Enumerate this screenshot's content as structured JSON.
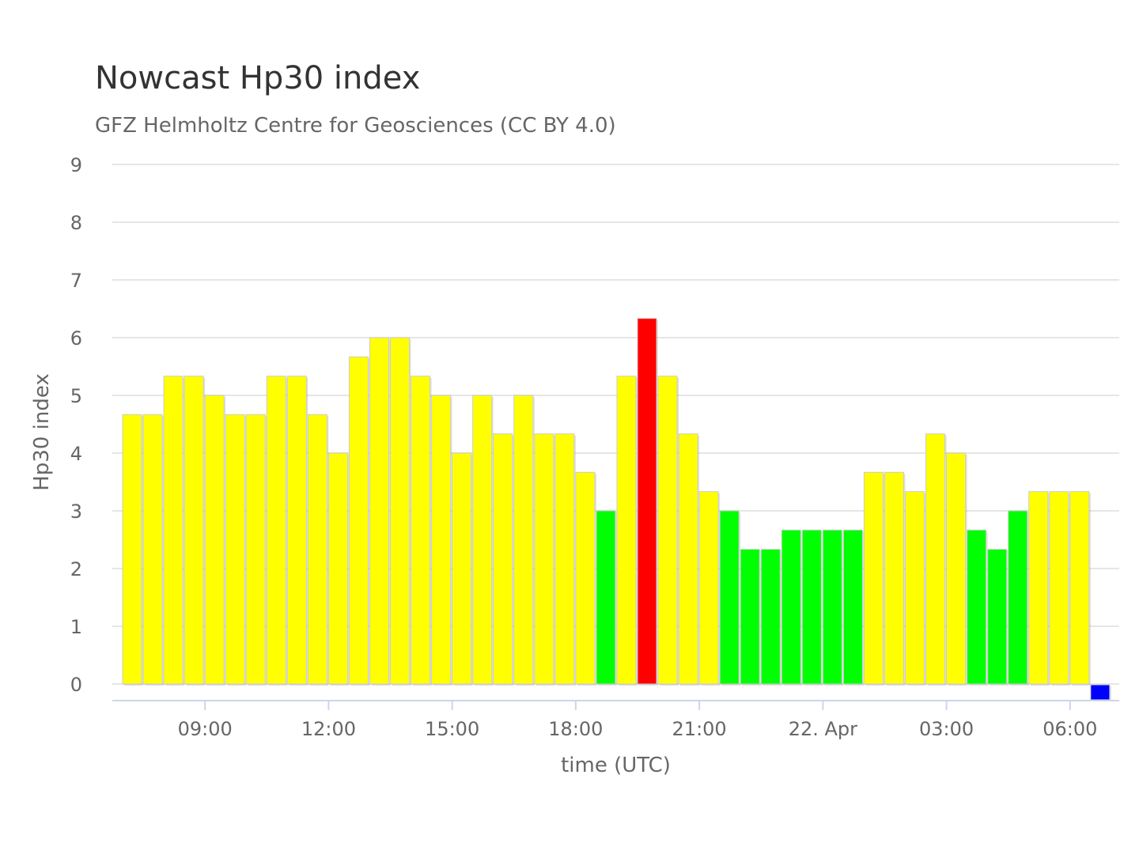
{
  "chart_data": {
    "type": "bar",
    "title": "Nowcast Hp30 index",
    "subtitle": "GFZ Helmholtz Centre for Geosciences (CC BY 4.0)",
    "xlabel": "time (UTC)",
    "ylabel": "Hp30 index",
    "ylim": [
      0,
      9
    ],
    "yticks": [
      "0",
      "1",
      "2",
      "3",
      "4",
      "5",
      "6",
      "7",
      "8",
      "9"
    ],
    "xticks": [
      "09:00",
      "12:00",
      "15:00",
      "18:00",
      "21:00",
      "22. Apr",
      "03:00",
      "06:00"
    ],
    "grid": true,
    "interval_minutes": 30,
    "first_bar": "21. Apr 07:00",
    "colors": {
      "low": "#00ff00",
      "moderate": "#ffff00",
      "high": "#ff0000",
      "missing": "#0000ff"
    },
    "values": [
      4.667,
      4.667,
      5.333,
      5.333,
      5.0,
      4.667,
      4.667,
      5.333,
      5.333,
      4.667,
      4.0,
      5.667,
      6.0,
      6.0,
      5.333,
      5.0,
      4.0,
      5.0,
      4.333,
      5.0,
      4.333,
      4.333,
      3.667,
      3.0,
      5.333,
      6.333,
      5.333,
      4.333,
      3.333,
      3.0,
      2.333,
      2.333,
      2.667,
      2.667,
      2.667,
      2.667,
      3.667,
      3.667,
      3.333,
      4.333,
      4.0,
      2.667,
      2.333,
      3.0,
      3.333,
      3.333,
      3.333,
      0
    ]
  }
}
